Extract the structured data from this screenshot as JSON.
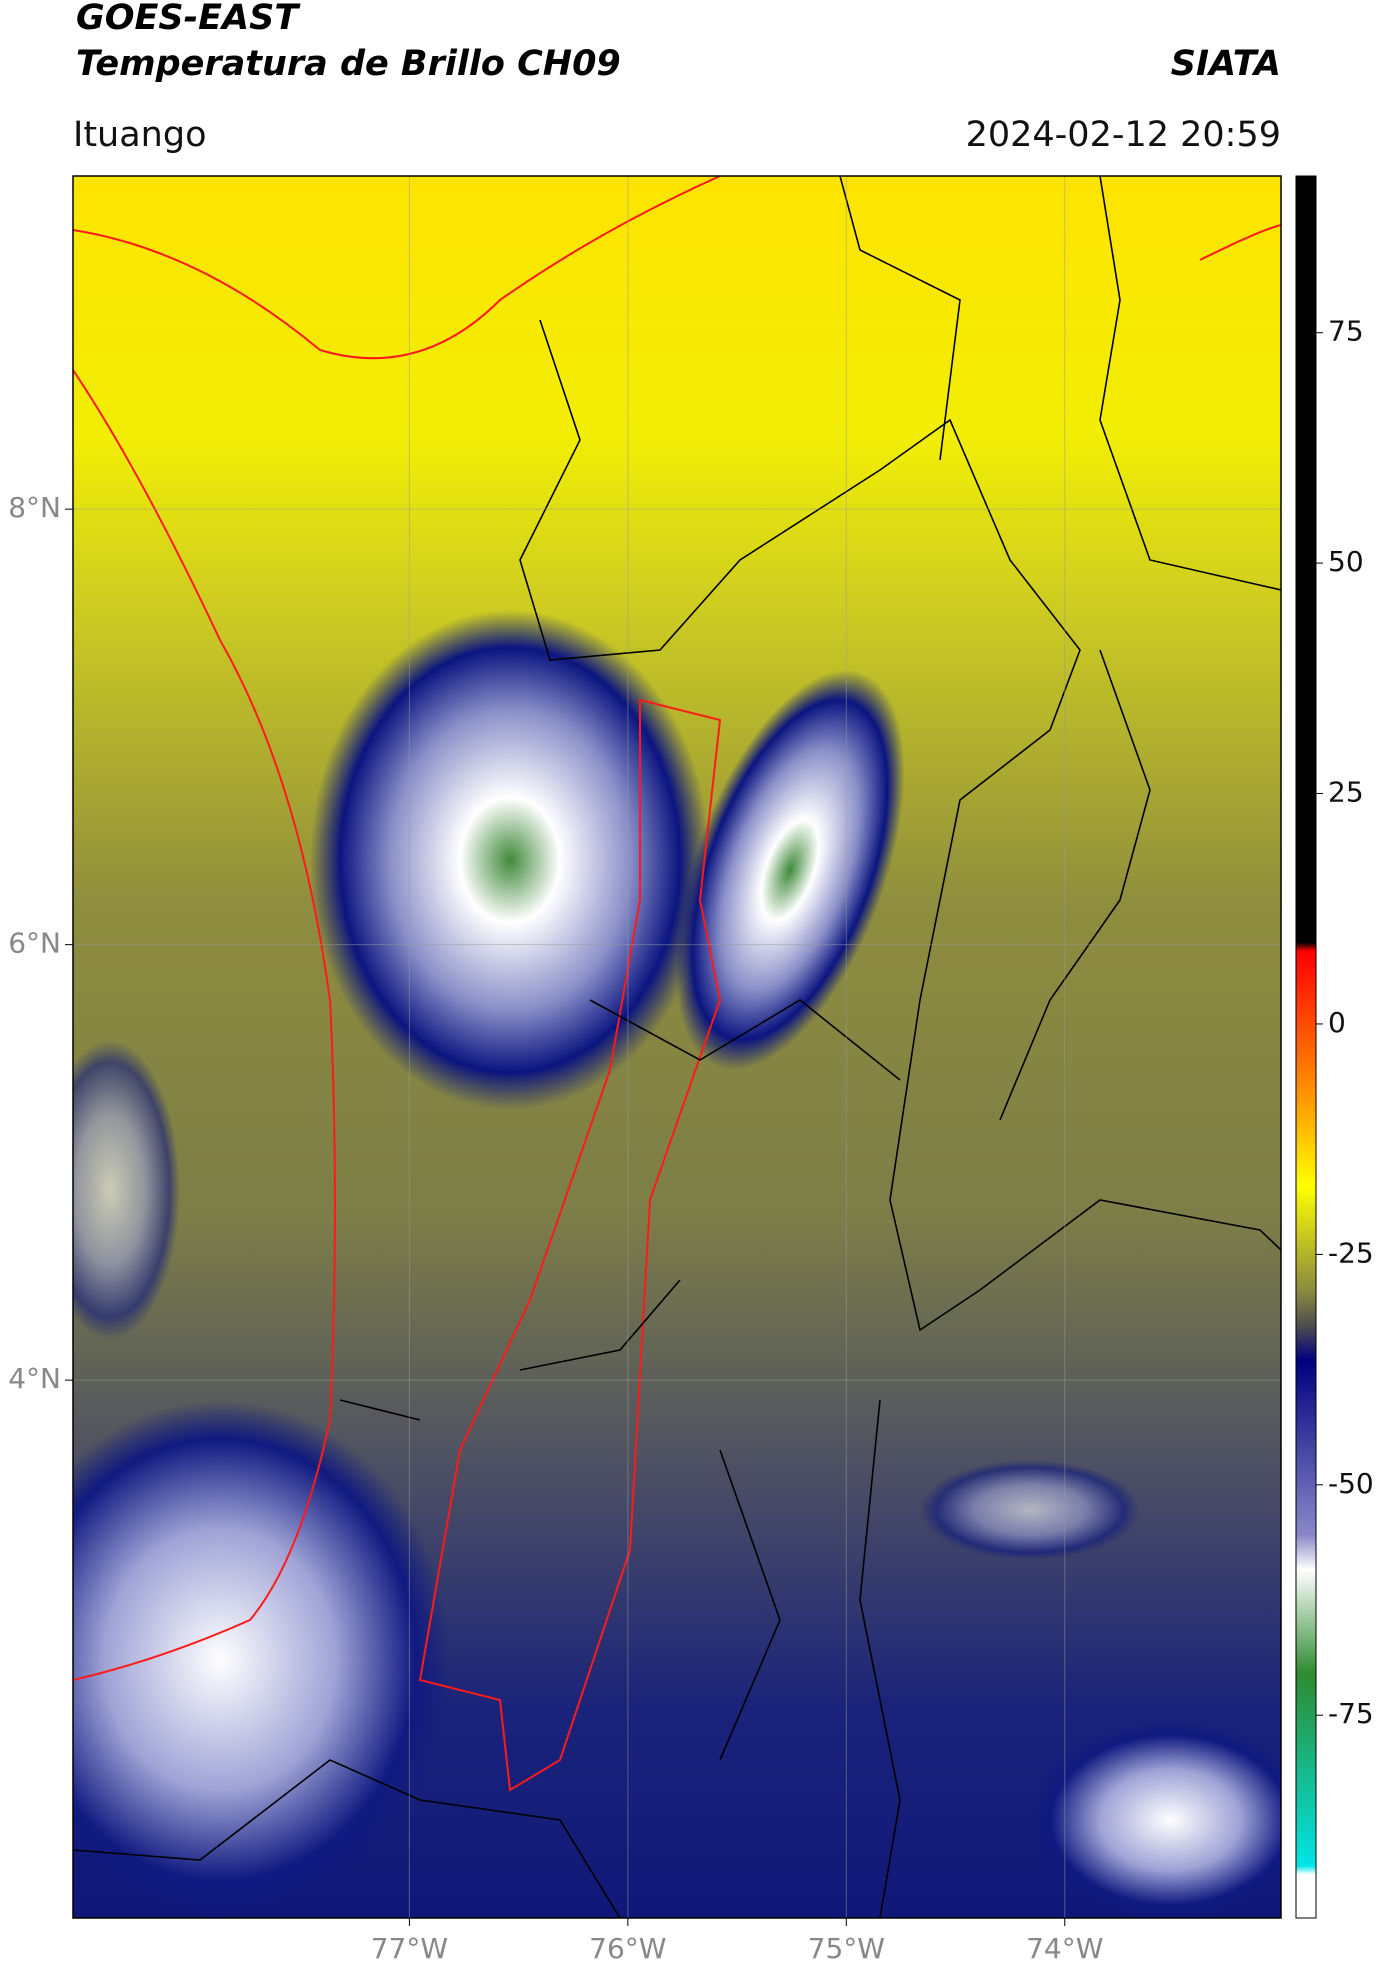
{
  "chart_data": {
    "type": "map",
    "title": "GOES-EAST",
    "subtitle": "Temperatura de Brillo CH09",
    "source": "SIATA",
    "location": "Ituango",
    "timestamp": "2024-02-12 20:59",
    "xlim": [
      -78.54,
      -73.01
    ],
    "ylim": [
      1.53,
      9.53
    ],
    "xticks": [
      {
        "value": -77,
        "label": "77°W"
      },
      {
        "value": -76,
        "label": "76°W"
      },
      {
        "value": -75,
        "label": "75°W"
      },
      {
        "value": -74,
        "label": "74°W"
      }
    ],
    "yticks": [
      {
        "value": 8,
        "label": "8°N"
      },
      {
        "value": 6,
        "label": "6°N"
      },
      {
        "value": 4,
        "label": "4°N"
      }
    ],
    "grid": true,
    "colorbar": {
      "lim": [
        -97,
        92
      ],
      "ticks": [
        75,
        50,
        25,
        0,
        -25,
        -50,
        -75
      ]
    }
  }
}
